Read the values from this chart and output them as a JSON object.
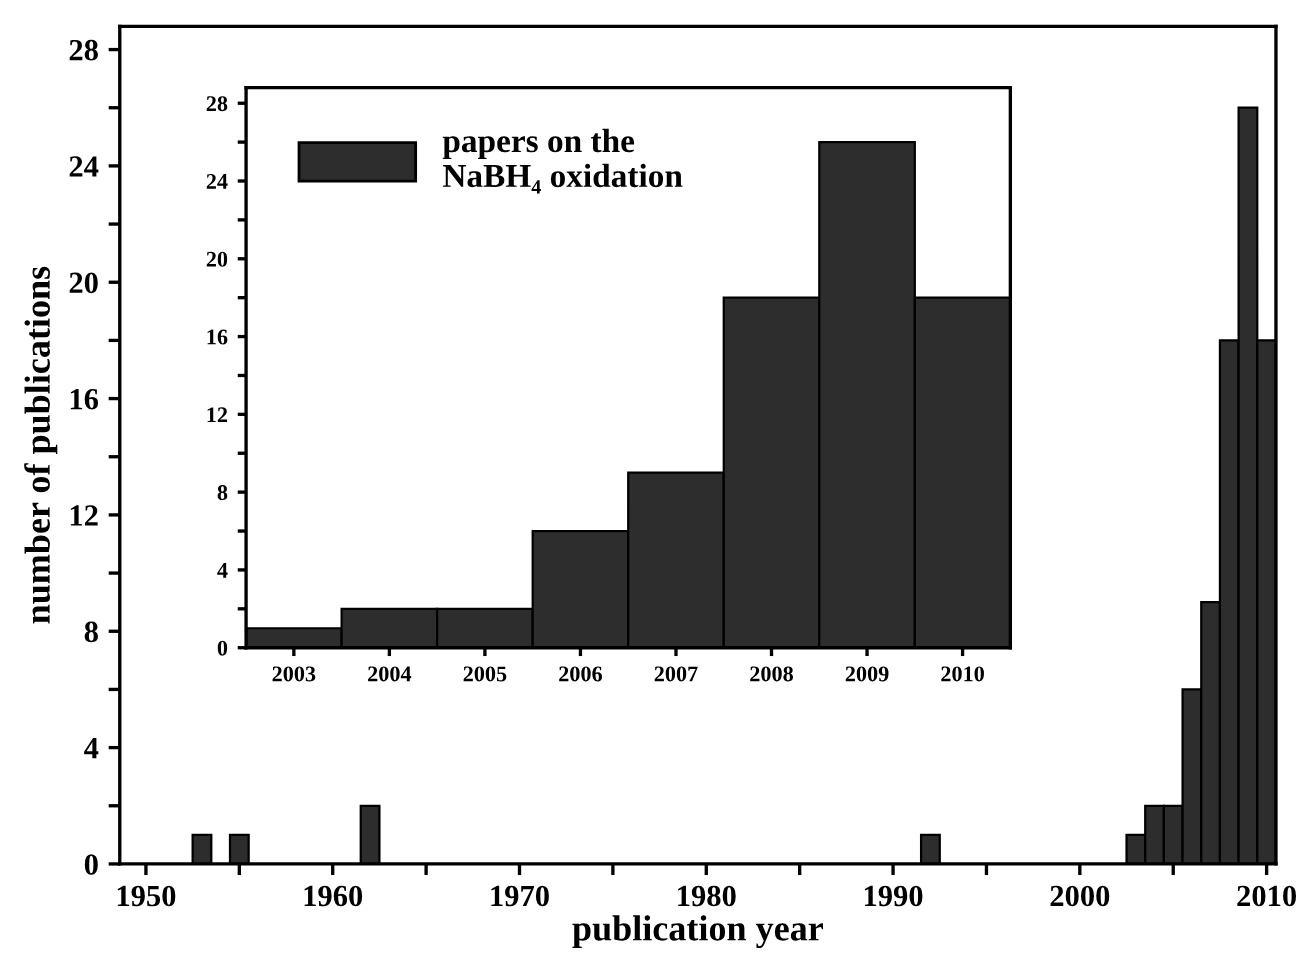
{
  "chart_data": [
    {
      "type": "bar",
      "xlabel": "publication year",
      "ylabel": "number of publications",
      "x": [
        1953,
        1955,
        1962,
        1992,
        2003,
        2004,
        2005,
        2006,
        2007,
        2008,
        2009,
        2010
      ],
      "series": [
        {
          "color": "#2d2d2d",
          "values": [
            1,
            1,
            2,
            1,
            1,
            2,
            2,
            6,
            9,
            18,
            26,
            18
          ]
        }
      ],
      "xlim": [
        1948.6,
        2010.5
      ],
      "ylim": [
        0,
        28.8
      ],
      "xticks": [
        1950,
        {
          "value": 1955,
          "label": null
        },
        1960,
        {
          "value": 1965,
          "label": null
        },
        1970,
        {
          "value": 1975,
          "label": null
        },
        1980,
        {
          "value": 1985,
          "label": null
        },
        1990,
        {
          "value": 1995,
          "label": null
        },
        2000,
        {
          "value": 2005,
          "label": null
        },
        2010
      ],
      "yticks": [
        0,
        {
          "value": 2,
          "label": null
        },
        4,
        {
          "value": 6,
          "label": null
        },
        8,
        {
          "value": 10,
          "label": null
        },
        12,
        {
          "value": 14,
          "label": null
        },
        16,
        {
          "value": 18,
          "label": null
        },
        20,
        {
          "value": 22,
          "label": null
        },
        24,
        {
          "value": 26,
          "label": null
        },
        28
      ],
      "grid": false,
      "legend": false
    },
    {
      "type": "bar",
      "categories": [
        "2003",
        "2004",
        "2005",
        "2006",
        "2007",
        "2008",
        "2009",
        "2010"
      ],
      "series": [
        {
          "name": "papers on the\nNaBH₄ oxidation",
          "color": "#2d2d2d",
          "values": [
            1,
            2,
            2,
            6,
            9,
            18,
            26,
            18
          ]
        }
      ],
      "ylim": [
        0,
        28.8
      ],
      "yticks": [
        0,
        {
          "value": 2,
          "label": null
        },
        4,
        {
          "value": 6,
          "label": null
        },
        8,
        {
          "value": 10,
          "label": null
        },
        12,
        {
          "value": 14,
          "label": null
        },
        16,
        {
          "value": 18,
          "label": null
        },
        20,
        {
          "value": 22,
          "label": null
        },
        24,
        {
          "value": 26,
          "label": null
        },
        28
      ],
      "grid": false,
      "legend": "top left"
    }
  ]
}
